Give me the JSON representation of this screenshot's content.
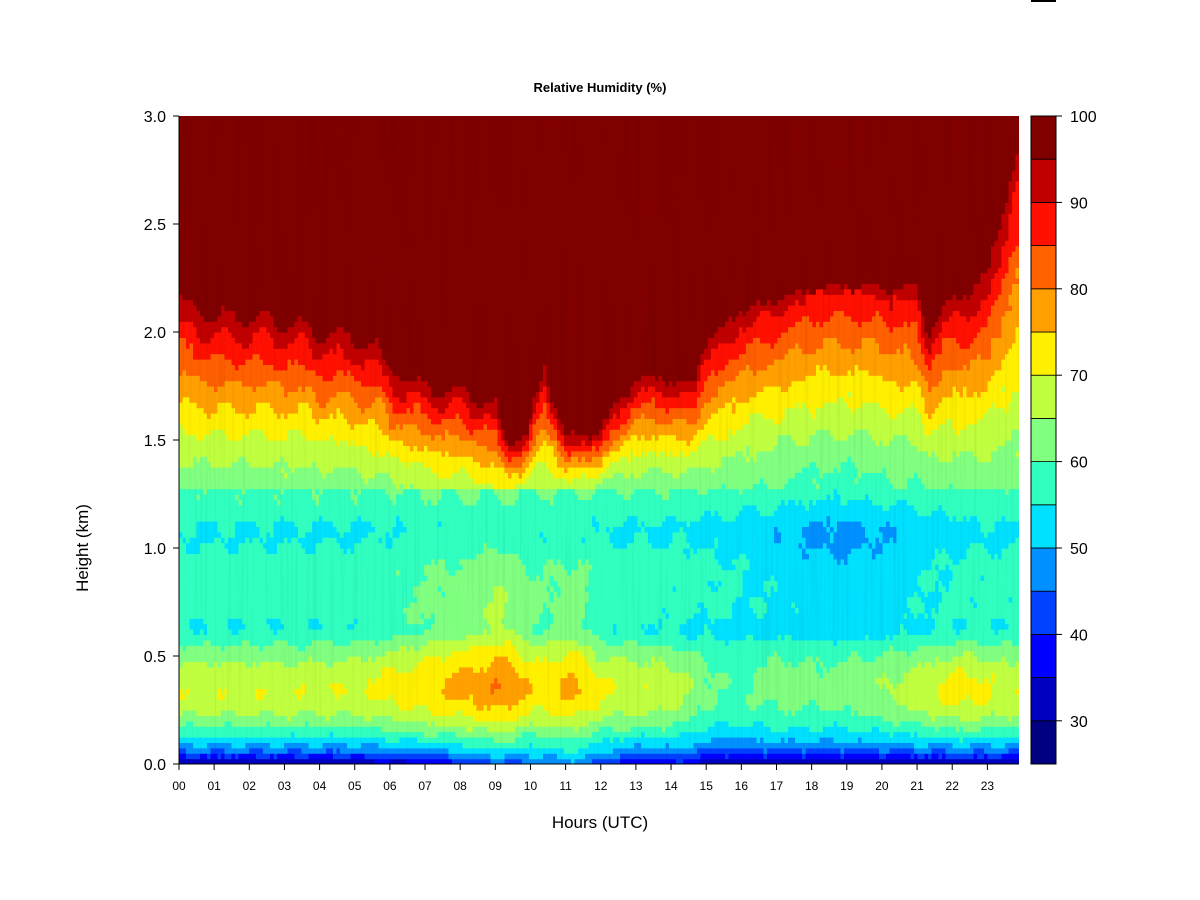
{
  "chart_data": {
    "type": "heatmap",
    "title": "Relative Humidity (%)",
    "xlabel": "Hours (UTC)",
    "ylabel": "Height (km)",
    "x_ticks": [
      "00",
      "01",
      "02",
      "03",
      "04",
      "05",
      "06",
      "07",
      "08",
      "09",
      "10",
      "11",
      "12",
      "13",
      "14",
      "15",
      "16",
      "17",
      "18",
      "19",
      "20",
      "21",
      "22",
      "23"
    ],
    "y_ticks": [
      "0.0",
      "0.5",
      "1.0",
      "1.5",
      "2.0",
      "2.5",
      "3.0"
    ],
    "xlim": [
      0,
      23.9
    ],
    "ylim": [
      0,
      3.0
    ],
    "colorbar": {
      "ticks": [
        "30",
        "40",
        "50",
        "60",
        "70",
        "80",
        "90",
        "100"
      ],
      "range": [
        25,
        100
      ],
      "levels": [
        {
          "from": 25,
          "to": 30,
          "color": "#000080"
        },
        {
          "from": 30,
          "to": 35,
          "color": "#0000C0"
        },
        {
          "from": 35,
          "to": 40,
          "color": "#0000FF"
        },
        {
          "from": 40,
          "to": 45,
          "color": "#0040FF"
        },
        {
          "from": 45,
          "to": 50,
          "color": "#0090FF"
        },
        {
          "from": 50,
          "to": 55,
          "color": "#00E0FF"
        },
        {
          "from": 55,
          "to": 60,
          "color": "#30FFC0"
        },
        {
          "from": 60,
          "to": 65,
          "color": "#80FF80"
        },
        {
          "from": 65,
          "to": 70,
          "color": "#C0FF40"
        },
        {
          "from": 70,
          "to": 75,
          "color": "#FFF000"
        },
        {
          "from": 75,
          "to": 80,
          "color": "#FFA000"
        },
        {
          "from": 80,
          "to": 85,
          "color": "#FF6000"
        },
        {
          "from": 85,
          "to": 90,
          "color": "#FF1000"
        },
        {
          "from": 90,
          "to": 95,
          "color": "#C00000"
        },
        {
          "from": 95,
          "to": 100,
          "color": "#800000"
        }
      ]
    },
    "saturation_top_km": [
      [
        0.0,
        2.15
      ],
      [
        1.0,
        2.08
      ],
      [
        2.0,
        2.08
      ],
      [
        3.0,
        2.05
      ],
      [
        4.0,
        2.0
      ],
      [
        5.0,
        1.98
      ],
      [
        5.6,
        1.95
      ],
      [
        6.0,
        1.85
      ],
      [
        7.0,
        1.8
      ],
      [
        8.0,
        1.8
      ],
      [
        9.0,
        1.75
      ],
      [
        9.3,
        1.55
      ],
      [
        9.9,
        1.55
      ],
      [
        10.4,
        1.88
      ],
      [
        11.0,
        1.55
      ],
      [
        12.0,
        1.55
      ],
      [
        12.6,
        1.7
      ],
      [
        13.0,
        1.8
      ],
      [
        14.0,
        1.78
      ],
      [
        14.6,
        1.75
      ],
      [
        15.0,
        1.95
      ],
      [
        16.0,
        2.1
      ],
      [
        17.0,
        2.15
      ],
      [
        18.0,
        2.2
      ],
      [
        19.0,
        2.22
      ],
      [
        20.0,
        2.2
      ],
      [
        21.0,
        2.2
      ],
      [
        21.3,
        2.0
      ],
      [
        22.0,
        2.15
      ],
      [
        23.0,
        2.25
      ],
      [
        23.9,
        2.9
      ]
    ]
  }
}
